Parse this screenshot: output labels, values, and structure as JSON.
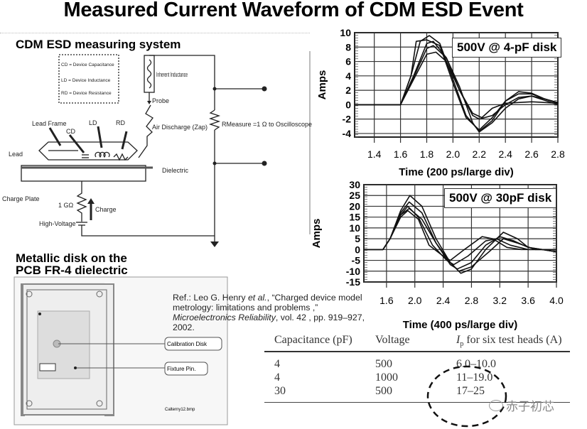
{
  "title": "Measured Current Waveform of CDM ESD Event",
  "circuit": {
    "heading": "CDM ESD measuring system",
    "legend": [
      "CD = Device Capacitance",
      "LD = Device Inductance",
      "RD = Device Resistance"
    ],
    "inherent_inductance": "Inherent Inductance",
    "probe": "Probe",
    "air_discharge": "Air Discharge (Zap)",
    "r_measure": "RMeasure =1 Ω to Oscilloscope",
    "lead_frame": "Lead Frame",
    "cd": "CD",
    "ld": "LD",
    "rd": "RD",
    "lead": "Lead",
    "dielectric": "Dielectric",
    "charge_plate": "Charge Plate",
    "resistor_1g": "1 GΩ",
    "charge": "Charge",
    "high_voltage": "High-Voltage"
  },
  "fixture": {
    "heading_line1": "Metallic disk on the",
    "heading_line2": "PCB FR-4 dielectric",
    "calibration_disk": "Calibration Disk",
    "fixture_pin": "Fixture Pin.",
    "filename": "Calterny12.bmp"
  },
  "reference": {
    "prefix": "Ref.: Leo G. Henry ",
    "etal": "et al.",
    "part2": ", “Charged device model metrology: limitations and problems ,” ",
    "journal": "Microelectronics Reliability",
    "part3": ", vol. 42 , pp. 919–927, 2002."
  },
  "table": {
    "headers": [
      "Capacitance (pF)",
      "Voltage",
      "for six test heads (A)"
    ],
    "ip_symbol": "I",
    "ip_sub": "p",
    "rows": [
      [
        "4",
        "500",
        "6.0–10.0"
      ],
      [
        "4",
        "1000",
        "11–19.0"
      ],
      [
        "30",
        "500",
        "17–25"
      ]
    ]
  },
  "watermark": "赤子初芯",
  "chart_data": [
    {
      "type": "line",
      "annotation": "500V @ 4-pF disk",
      "xlabel": "Time (200 ps/large div)",
      "ylabel": "Amps",
      "xlim": [
        1.25,
        2.8
      ],
      "ylim": [
        -4.5,
        10
      ],
      "xticks": [
        1.4,
        1.6,
        1.8,
        2.0,
        2.2,
        2.4,
        2.6,
        2.8
      ],
      "xtick_labels": [
        "1.4",
        "1.6",
        "1.8",
        "2.0",
        "2.2",
        "2.4",
        "2.6",
        "2.8"
      ],
      "yticks": [
        10,
        8,
        6,
        4,
        2,
        0,
        -2,
        -4
      ],
      "ytick_labels": [
        "10",
        "8",
        "6",
        "4",
        "2",
        "0",
        "-2",
        "-4"
      ],
      "grid": true,
      "series": [
        {
          "x": [
            1.25,
            1.6,
            1.68,
            1.75,
            1.82,
            1.9,
            2.0,
            2.1,
            2.2,
            2.3,
            2.4,
            2.5,
            2.6,
            2.7,
            2.8
          ],
          "y": [
            0,
            0,
            4,
            8.8,
            9.6,
            8.5,
            3.5,
            -1.5,
            -3.7,
            -2.2,
            0.5,
            1.8,
            1.6,
            0.8,
            0.2
          ]
        },
        {
          "x": [
            1.25,
            1.6,
            1.68,
            1.72,
            1.8,
            1.9,
            2.0,
            2.1,
            2.2,
            2.3,
            2.4,
            2.5,
            2.6,
            2.7,
            2.8
          ],
          "y": [
            0,
            0,
            4,
            8.8,
            9.0,
            8.2,
            3.0,
            -1.8,
            -3.5,
            -1.8,
            0.5,
            1.5,
            1.5,
            0.8,
            0.2
          ]
        },
        {
          "x": [
            1.25,
            1.6,
            1.7,
            1.8,
            1.85,
            1.95,
            2.05,
            2.15,
            2.2,
            2.3,
            2.4,
            2.5,
            2.6,
            2.7,
            2.8
          ],
          "y": [
            0,
            0,
            4,
            8.5,
            8.8,
            6.5,
            2.0,
            -1.5,
            -2.0,
            -1.5,
            0,
            1.0,
            1.2,
            0.8,
            0.3
          ]
        },
        {
          "x": [
            1.25,
            1.6,
            1.7,
            1.8,
            1.87,
            1.95,
            2.05,
            2.15,
            2.22,
            2.3,
            2.4,
            2.5,
            2.6,
            2.7,
            2.8
          ],
          "y": [
            0,
            0,
            3.5,
            7.0,
            7.3,
            6.0,
            2.0,
            -1.2,
            -1.8,
            -0.5,
            0.2,
            0.3,
            0.4,
            0.3,
            0.2
          ]
        },
        {
          "x": [
            1.25,
            1.6,
            1.7,
            1.8,
            1.85,
            1.95,
            2.05,
            2.15,
            2.2,
            2.3,
            2.4,
            2.5,
            2.6,
            2.7,
            2.8
          ],
          "y": [
            0,
            0,
            3.8,
            7.8,
            8.2,
            6.5,
            2.5,
            -2.5,
            -3.8,
            -2.5,
            -0.5,
            0.8,
            1.2,
            0.6,
            0
          ]
        }
      ]
    },
    {
      "type": "line",
      "annotation": "500V @ 30pF disk",
      "xlabel": "Time (400 ps/large div)",
      "ylabel": "Amps",
      "xlim": [
        1.28,
        4.0
      ],
      "ylim": [
        -15,
        30
      ],
      "xticks": [
        1.6,
        2.0,
        2.4,
        2.8,
        3.2,
        3.6,
        4.0
      ],
      "xtick_labels": [
        "1.6",
        "2.0",
        "2.4",
        "2.8",
        "3.2",
        "3.6",
        "4.0"
      ],
      "yticks": [
        30,
        25,
        20,
        15,
        10,
        5,
        0,
        -5,
        -10,
        -15
      ],
      "ytick_labels": [
        "30",
        "25",
        "20",
        "15",
        "10",
        "5",
        "0",
        "-5",
        "-10",
        "-15"
      ],
      "grid": true,
      "series": [
        {
          "x": [
            1.28,
            1.55,
            1.65,
            1.8,
            1.93,
            2.1,
            2.3,
            2.5,
            2.65,
            2.8,
            3.0,
            3.25,
            3.45,
            3.6,
            3.8,
            4.0
          ],
          "y": [
            0,
            0,
            5,
            18,
            25,
            20,
            5,
            -6,
            -11,
            -9,
            0,
            8,
            5,
            1,
            0,
            -1
          ]
        },
        {
          "x": [
            1.28,
            1.55,
            1.65,
            1.8,
            1.92,
            2.1,
            2.3,
            2.5,
            2.6,
            2.8,
            3.0,
            3.2,
            3.4,
            3.6,
            3.8,
            4.0
          ],
          "y": [
            0,
            0,
            5,
            17,
            22,
            17,
            3,
            -7,
            -9,
            -6,
            2,
            6,
            4,
            1,
            0,
            -1
          ]
        },
        {
          "x": [
            1.28,
            1.55,
            1.65,
            1.8,
            1.9,
            2.05,
            2.25,
            2.45,
            2.55,
            2.75,
            3.0,
            3.15,
            3.35,
            3.6,
            3.8,
            4.0
          ],
          "y": [
            0,
            0,
            5,
            16,
            20,
            15,
            2,
            -5,
            -7,
            -3,
            4,
            5,
            2,
            0,
            0,
            -1
          ]
        },
        {
          "x": [
            1.28,
            1.55,
            1.65,
            1.8,
            1.9,
            2.05,
            2.2,
            2.4,
            2.5,
            2.7,
            2.95,
            3.1,
            3.3,
            3.5,
            3.8,
            4.0
          ],
          "y": [
            0,
            0,
            5,
            15,
            18,
            14,
            2,
            -3,
            -5,
            0,
            6,
            5,
            1,
            0,
            0,
            0
          ]
        },
        {
          "x": [
            1.28,
            1.55,
            1.65,
            1.8,
            1.92,
            2.1,
            2.3,
            2.5,
            2.62,
            2.8,
            3.05,
            3.25,
            3.45,
            3.7,
            3.9,
            4.0
          ],
          "y": [
            0,
            0,
            5,
            16,
            19,
            14,
            3,
            -6,
            -10,
            -8,
            -1,
            5,
            3,
            0,
            0,
            0
          ]
        }
      ]
    }
  ]
}
